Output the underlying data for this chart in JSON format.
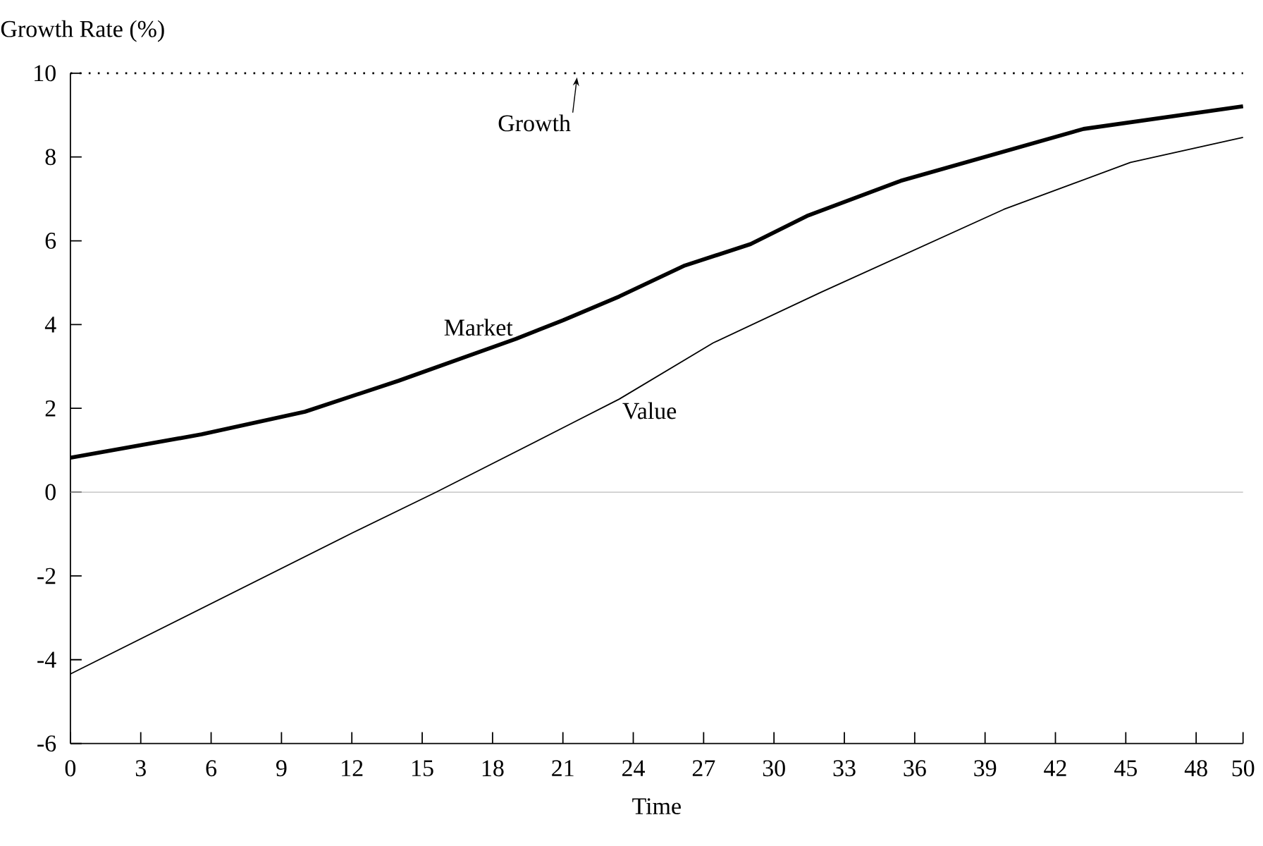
{
  "chart_data": {
    "type": "line",
    "ylabel": "Growth Rate (%)",
    "xlabel": "Time",
    "xlim": [
      0,
      50
    ],
    "ylim": [
      -6,
      10
    ],
    "xticks": [
      0,
      3,
      6,
      9,
      12,
      15,
      18,
      21,
      24,
      27,
      30,
      33,
      36,
      39,
      42,
      45,
      48,
      50
    ],
    "yticks": [
      -6,
      -4,
      -2,
      0,
      2,
      4,
      6,
      8,
      10
    ],
    "grid": false,
    "legend": false,
    "marker": "none",
    "line_style": "solid",
    "series": [
      {
        "name": "Market",
        "color": "#000000",
        "x": [
          0,
          5.6,
          10,
          14,
          19,
          21,
          23.4,
          26.2,
          29,
          31.4,
          35.4,
          43.2,
          50
        ],
        "values": [
          0.82,
          1.38,
          1.92,
          2.66,
          3.66,
          4.1,
          4.67,
          5.41,
          5.92,
          6.59,
          7.43,
          8.67,
          9.21
        ]
      },
      {
        "name": "Value",
        "color": "#000000",
        "x": [
          0,
          12,
          15.6,
          21.4,
          23.4,
          27.4,
          32,
          39.8,
          45.2,
          50
        ],
        "values": [
          -4.34,
          -0.98,
          0,
          1.65,
          2.22,
          3.56,
          4.77,
          6.75,
          7.87,
          8.47
        ]
      }
    ],
    "ref_lines": [
      {
        "axis": "y",
        "value": 10,
        "color": "#000000",
        "line_style": "dotted"
      },
      {
        "axis": "y",
        "value": 0,
        "color": "#bbbbbb",
        "line_style": "solid"
      }
    ],
    "annotations": [
      {
        "text": "Growth",
        "x": 21.6,
        "y": 10
      }
    ]
  }
}
